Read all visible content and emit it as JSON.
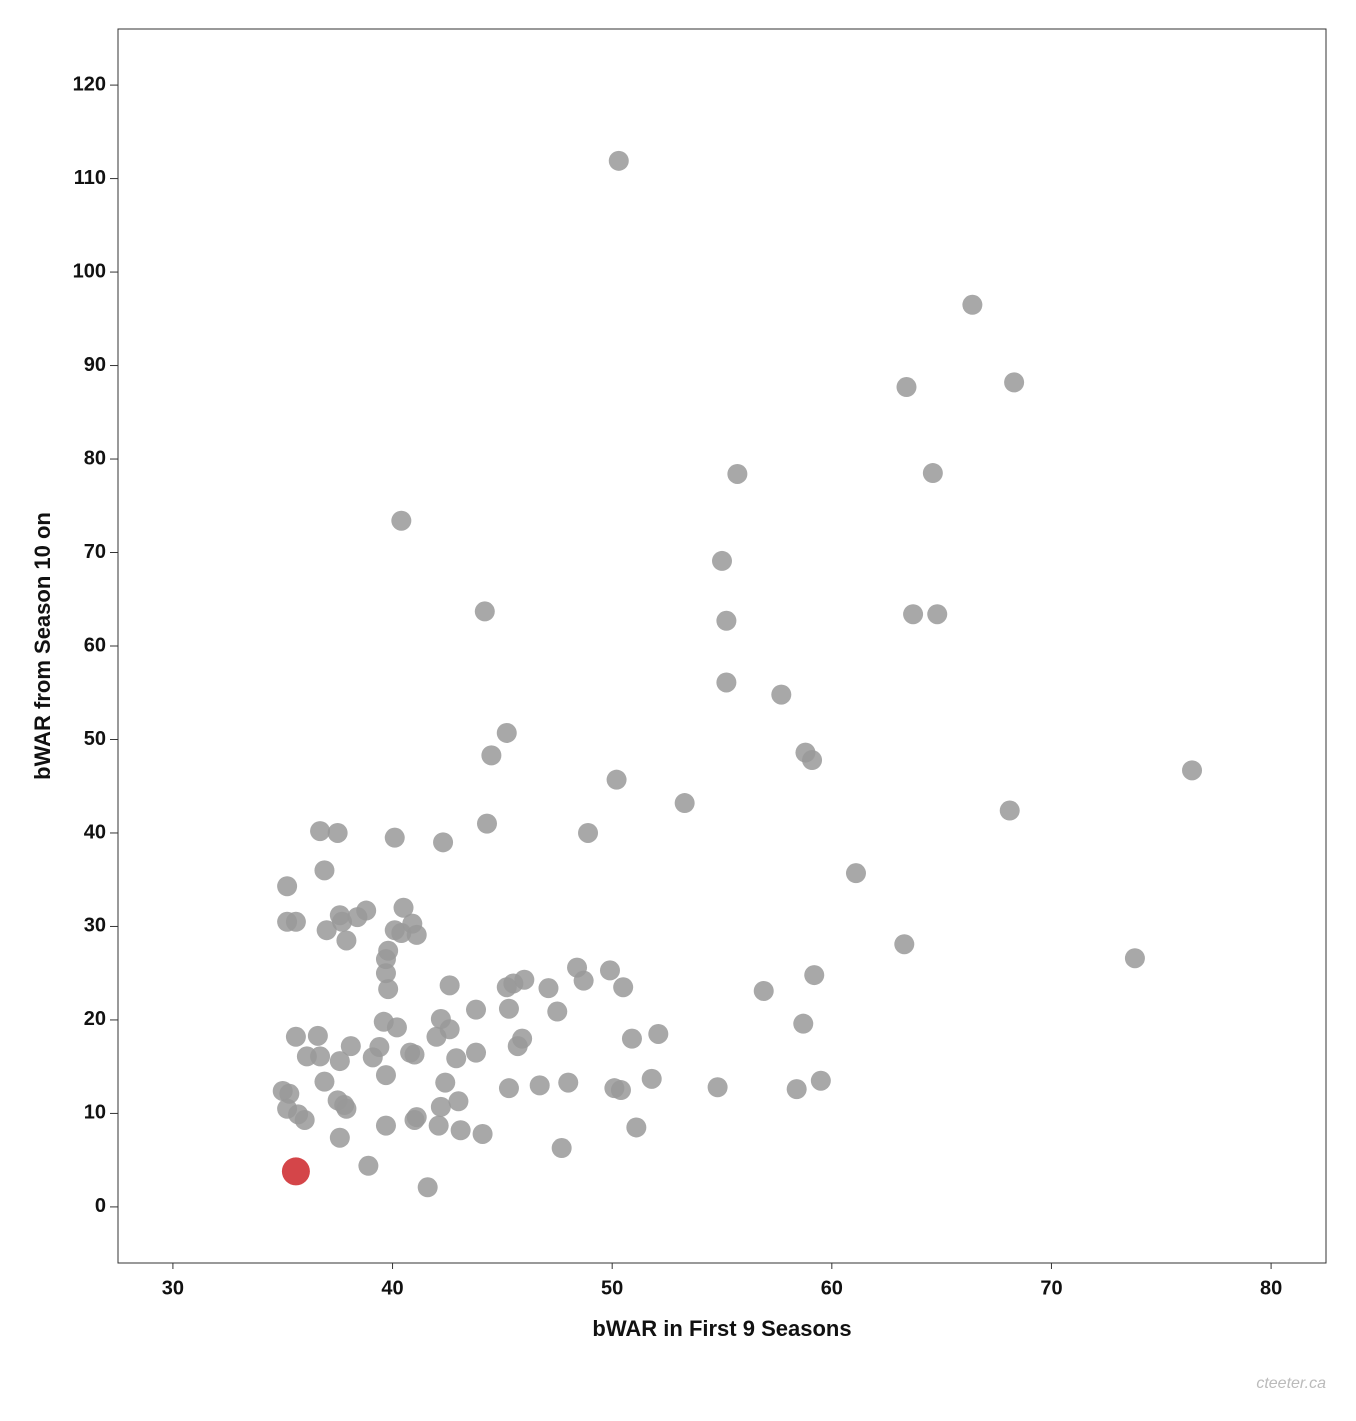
{
  "chart_data": {
    "type": "scatter",
    "x_label": "bWAR in First 9 Seasons",
    "y_label": "bWAR from Season 10 on",
    "watermark": "cteeter.ca",
    "xlim": [
      27.5,
      82.5
    ],
    "ylim": [
      -6,
      126
    ],
    "xticks": [
      30,
      40,
      50,
      60,
      70,
      80
    ],
    "yticks": [
      0,
      10,
      20,
      30,
      40,
      50,
      60,
      70,
      80,
      90,
      100,
      110,
      120
    ],
    "series": [
      {
        "color": "#999999",
        "x": [
          50.3,
          66.4,
          63.4,
          68.3,
          55.7,
          64.6,
          40.4,
          55.0,
          44.2,
          63.7,
          64.8,
          55.2,
          55.2,
          57.7,
          45.2,
          44.5,
          58.8,
          59.1,
          50.2,
          76.4,
          53.3,
          68.1,
          44.3,
          36.7,
          37.5,
          40.1,
          48.9,
          42.3,
          36.9,
          61.1,
          35.2,
          38.8,
          40.5,
          37.6,
          38.4,
          35.2,
          35.6,
          37.7,
          40.9,
          37.0,
          40.1,
          40.4,
          41.1,
          37.9,
          63.3,
          39.8,
          39.7,
          73.8,
          48.4,
          49.9,
          39.7,
          59.2,
          46.0,
          45.5,
          48.7,
          42.6,
          45.2,
          47.1,
          50.5,
          39.8,
          56.9,
          43.8,
          45.3,
          47.5,
          42.2,
          39.6,
          58.7,
          40.2,
          42.6,
          52.1,
          35.6,
          36.6,
          42.0,
          50.9,
          45.9,
          38.1,
          39.4,
          45.7,
          40.8,
          43.8,
          41.0,
          36.1,
          36.7,
          39.1,
          42.9,
          37.6,
          39.7,
          51.8,
          59.5,
          36.9,
          42.4,
          48.0,
          46.7,
          45.3,
          54.8,
          50.1,
          50.4,
          58.4,
          35.0,
          35.3,
          37.5,
          43.0,
          37.8,
          37.9,
          42.2,
          35.2,
          35.7,
          41.1,
          36.0,
          41.0,
          39.7,
          42.1,
          51.1,
          43.1,
          44.1,
          37.6,
          47.7,
          38.9,
          41.6
        ],
        "values": [
          111.9,
          96.5,
          87.7,
          88.2,
          78.4,
          78.5,
          73.4,
          69.1,
          63.7,
          63.4,
          63.4,
          62.7,
          56.1,
          54.8,
          50.7,
          48.3,
          48.6,
          47.8,
          45.7,
          46.7,
          43.2,
          42.4,
          41.0,
          40.2,
          40.0,
          39.5,
          40.0,
          39.0,
          36.0,
          35.7,
          34.3,
          31.7,
          32.0,
          31.2,
          31.0,
          30.5,
          30.5,
          30.5,
          30.3,
          29.6,
          29.6,
          29.3,
          29.1,
          28.5,
          28.1,
          27.4,
          26.5,
          26.6,
          25.6,
          25.3,
          25.0,
          24.8,
          24.3,
          23.9,
          24.2,
          23.7,
          23.5,
          23.4,
          23.5,
          23.3,
          23.1,
          21.1,
          21.2,
          20.9,
          20.1,
          19.8,
          19.6,
          19.2,
          19.0,
          18.5,
          18.2,
          18.3,
          18.2,
          18.0,
          18.0,
          17.2,
          17.1,
          17.2,
          16.5,
          16.5,
          16.3,
          16.1,
          16.1,
          16.0,
          15.9,
          15.6,
          14.1,
          13.7,
          13.5,
          13.4,
          13.3,
          13.3,
          13.0,
          12.7,
          12.8,
          12.7,
          12.5,
          12.6,
          12.4,
          12.1,
          11.4,
          11.3,
          10.9,
          10.5,
          10.7,
          10.5,
          9.9,
          9.6,
          9.3,
          9.3,
          8.7,
          8.7,
          8.5,
          8.2,
          7.8,
          7.4,
          6.3,
          4.4,
          2.1
        ]
      },
      {
        "color": "#cc2529",
        "x": [
          35.6
        ],
        "values": [
          3.8
        ]
      }
    ]
  }
}
